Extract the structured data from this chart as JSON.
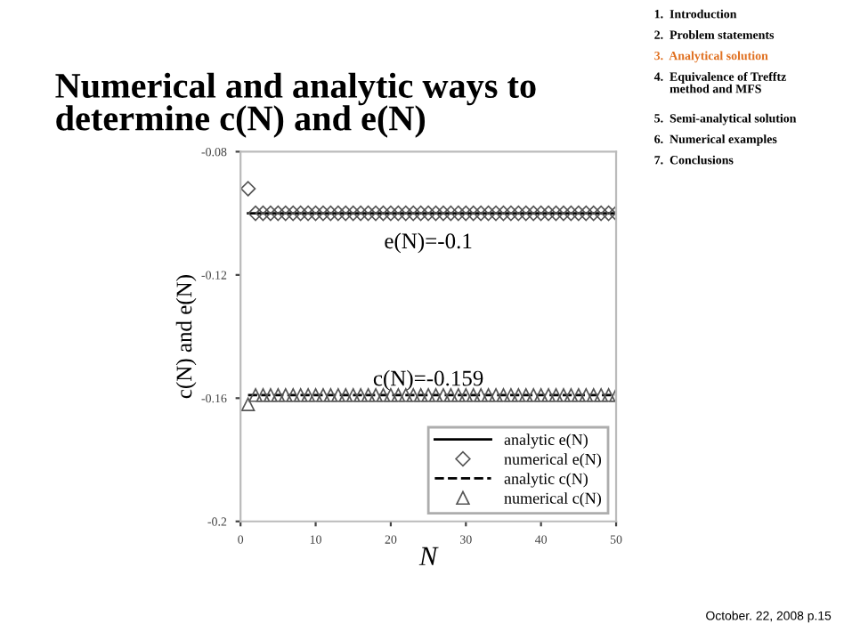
{
  "chart_data": {
    "type": "line",
    "title": "Numerical and analytic ways to\ndetermine c(N) and e(N)",
    "xlabel": "N",
    "ylabel": "c(N) and e(N)",
    "xlim": [
      0,
      50
    ],
    "xticks": [
      0,
      10,
      20,
      30,
      40,
      50
    ],
    "ylim": [
      -0.2,
      -0.08
    ],
    "yticks": [
      -0.08,
      -0.12,
      -0.16,
      -0.2
    ],
    "grid": false,
    "legend": "bottom right",
    "series": [
      {
        "name": "analytic e(N)",
        "line_style": "solid",
        "marker": "none",
        "color": "#000000",
        "x": [
          1,
          50
        ],
        "values": [
          -0.1,
          -0.1
        ]
      },
      {
        "name": "numerical e(N)",
        "type": "scatter",
        "marker": "diamond",
        "color": "#555555",
        "x": [
          1,
          2,
          3,
          4,
          5,
          6,
          7,
          8,
          9,
          10,
          11,
          12,
          13,
          14,
          15,
          16,
          17,
          18,
          19,
          20,
          21,
          22,
          23,
          24,
          25,
          26,
          27,
          28,
          29,
          30,
          31,
          32,
          33,
          34,
          35,
          36,
          37,
          38,
          39,
          40,
          41,
          42,
          43,
          44,
          45,
          46,
          47,
          48,
          49,
          50
        ],
        "values": [
          -0.092,
          -0.1,
          -0.1,
          -0.1,
          -0.1,
          -0.1,
          -0.1,
          -0.1,
          -0.1,
          -0.1,
          -0.1,
          -0.1,
          -0.1,
          -0.1,
          -0.1,
          -0.1,
          -0.1,
          -0.1,
          -0.1,
          -0.1,
          -0.1,
          -0.1,
          -0.1,
          -0.1,
          -0.1,
          -0.1,
          -0.1,
          -0.1,
          -0.1,
          -0.1,
          -0.1,
          -0.1,
          -0.1,
          -0.1,
          -0.1,
          -0.1,
          -0.1,
          -0.1,
          -0.1,
          -0.1,
          -0.1,
          -0.1,
          -0.1,
          -0.1,
          -0.1,
          -0.1,
          -0.1,
          -0.1,
          -0.1,
          -0.1
        ]
      },
      {
        "name": "analytic c(N)",
        "line_style": "dashed",
        "marker": "none",
        "color": "#000000",
        "x": [
          1,
          50
        ],
        "values": [
          -0.159,
          -0.159
        ]
      },
      {
        "name": "numerical c(N)",
        "type": "scatter",
        "marker": "triangle",
        "color": "#555555",
        "x": [
          1,
          2,
          3,
          4,
          5,
          6,
          7,
          8,
          9,
          10,
          11,
          12,
          13,
          14,
          15,
          16,
          17,
          18,
          19,
          20,
          21,
          22,
          23,
          24,
          25,
          26,
          27,
          28,
          29,
          30,
          31,
          32,
          33,
          34,
          35,
          36,
          37,
          38,
          39,
          40,
          41,
          42,
          43,
          44,
          45,
          46,
          47,
          48,
          49,
          50
        ],
        "values": [
          -0.162,
          -0.159,
          -0.159,
          -0.159,
          -0.159,
          -0.159,
          -0.159,
          -0.159,
          -0.159,
          -0.159,
          -0.159,
          -0.159,
          -0.159,
          -0.159,
          -0.159,
          -0.159,
          -0.159,
          -0.159,
          -0.159,
          -0.159,
          -0.159,
          -0.159,
          -0.159,
          -0.159,
          -0.159,
          -0.159,
          -0.159,
          -0.159,
          -0.159,
          -0.159,
          -0.159,
          -0.159,
          -0.159,
          -0.159,
          -0.159,
          -0.159,
          -0.159,
          -0.159,
          -0.159,
          -0.159,
          -0.159,
          -0.159,
          -0.159,
          -0.159,
          -0.159,
          -0.159,
          -0.159,
          -0.159,
          -0.159,
          -0.159
        ]
      }
    ],
    "annotations": [
      {
        "text": "e(N)=-0.1",
        "x": 25,
        "y": -0.1
      },
      {
        "text": "c(N)=-0.159",
        "x": 25,
        "y": -0.159
      },
      "1.  Introduction",
      "2.  Problem statements",
      "3.  Analytical solution",
      "4.  Equivalence of Trefftz\n     method and MFS",
      "5.  Semi-analytical solution",
      "6.  Numerical examples",
      "7.  Conclusions",
      "October. 22, 2008 p.15"
    ]
  }
}
